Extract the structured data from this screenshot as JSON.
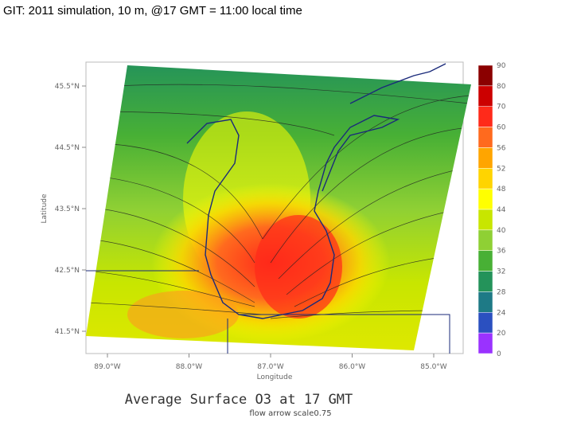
{
  "slide_title": "GIT: 2011 simulation, 10 m, @17 GMT = 11:00 local time",
  "map": {
    "title": "Average Surface O3 at 17 GMT",
    "subtitle": "flow arrow scale0.75",
    "y_label": "Latitude",
    "x_label": "Longitude",
    "yticks": [
      "45.5°N",
      "44.5°N",
      "43.5°N",
      "42.5°N",
      "41.5°N"
    ],
    "xticks": [
      "89.0°W",
      "88.0°W",
      "87.0°W",
      "86.0°W",
      "85.0°W"
    ],
    "colorbar": {
      "labels": [
        90,
        80,
        70,
        60,
        56,
        52,
        48,
        44,
        40,
        36,
        32,
        28,
        24,
        20,
        0
      ],
      "colors": [
        "#8b0000",
        "#cc0000",
        "#ff2a1a",
        "#ff6a1e",
        "#ffa500",
        "#ffd400",
        "#ffff00",
        "#c8e600",
        "#8fd034",
        "#48b035",
        "#24935a",
        "#1e7a86",
        "#2b50c0",
        "#9a32ff"
      ]
    }
  }
}
